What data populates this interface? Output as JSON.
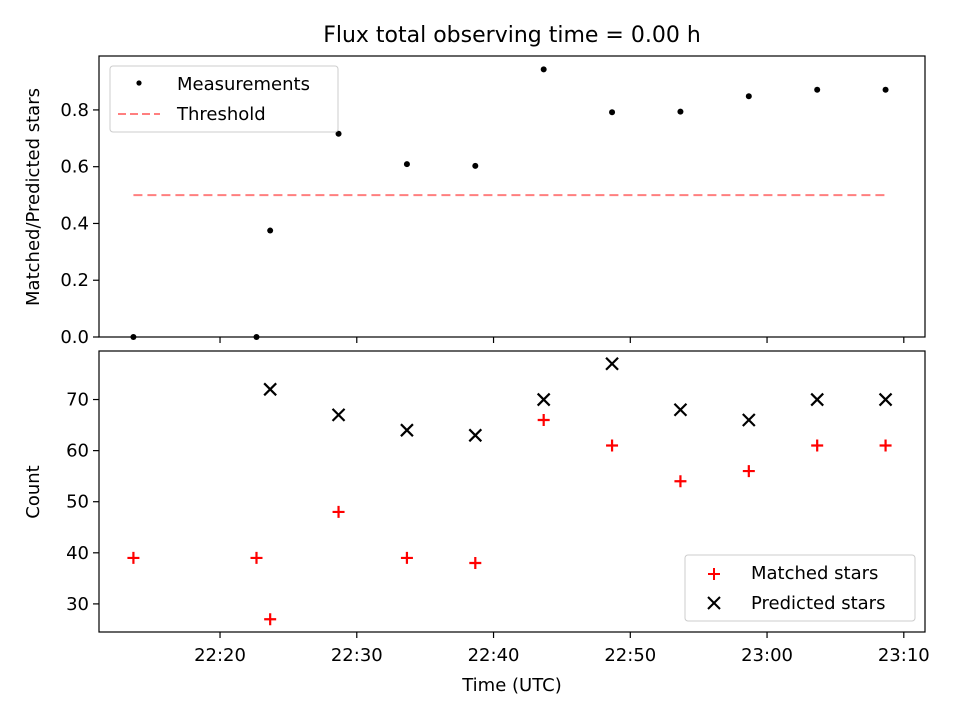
{
  "chart_data": [
    {
      "type": "scatter",
      "title": "Flux total observing time = 0.00 h",
      "ylabel": "Matched/Predicted stars",
      "ylim": [
        0.0,
        0.99
      ],
      "yticks": [
        "0.0",
        "0.2",
        "0.4",
        "0.6",
        "0.8"
      ],
      "legend_position": "top-left",
      "series": [
        {
          "name": "Measurements",
          "marker": "dot",
          "color": "#000000",
          "x": [
            "22:13:40",
            "22:22:40",
            "22:23:40",
            "22:28:40",
            "22:33:40",
            "22:38:40",
            "22:43:40",
            "22:48:40",
            "22:53:40",
            "22:58:40",
            "23:03:40",
            "23:08:40"
          ],
          "y": [
            0.0,
            0.0,
            0.375,
            0.716,
            0.609,
            0.603,
            0.943,
            0.792,
            0.794,
            0.848,
            0.871,
            0.871
          ]
        },
        {
          "name": "Threshold",
          "marker": "dashed-line",
          "color": "#ff7f7f",
          "x": [
            "22:13:40",
            "23:08:40"
          ],
          "y": [
            0.5,
            0.5
          ]
        }
      ]
    },
    {
      "type": "scatter",
      "xlabel": "Time (UTC)",
      "ylabel": "Count",
      "ylim": [
        24.5,
        79.5
      ],
      "yticks": [
        "30",
        "40",
        "50",
        "60",
        "70"
      ],
      "xticks": [
        "22:20",
        "22:30",
        "22:40",
        "22:50",
        "23:00",
        "23:10"
      ],
      "legend_position": "bottom-right",
      "series": [
        {
          "name": "Matched stars",
          "marker": "plus",
          "color": "#ff0000",
          "x": [
            "22:13:40",
            "22:22:40",
            "22:23:40",
            "22:28:40",
            "22:33:40",
            "22:38:40",
            "22:43:40",
            "22:48:40",
            "22:53:40",
            "22:58:40",
            "23:03:40",
            "23:08:40"
          ],
          "y": [
            39,
            39,
            27,
            48,
            39,
            38,
            66,
            61,
            54,
            56,
            61,
            61
          ]
        },
        {
          "name": "Predicted stars",
          "marker": "x",
          "color": "#000000",
          "x": [
            "22:23:40",
            "22:28:40",
            "22:33:40",
            "22:38:40",
            "22:43:40",
            "22:48:40",
            "22:53:40",
            "22:58:40",
            "23:03:40",
            "23:08:40"
          ],
          "y": [
            72,
            67,
            64,
            63,
            70,
            77,
            68,
            66,
            70,
            70
          ]
        }
      ]
    }
  ]
}
